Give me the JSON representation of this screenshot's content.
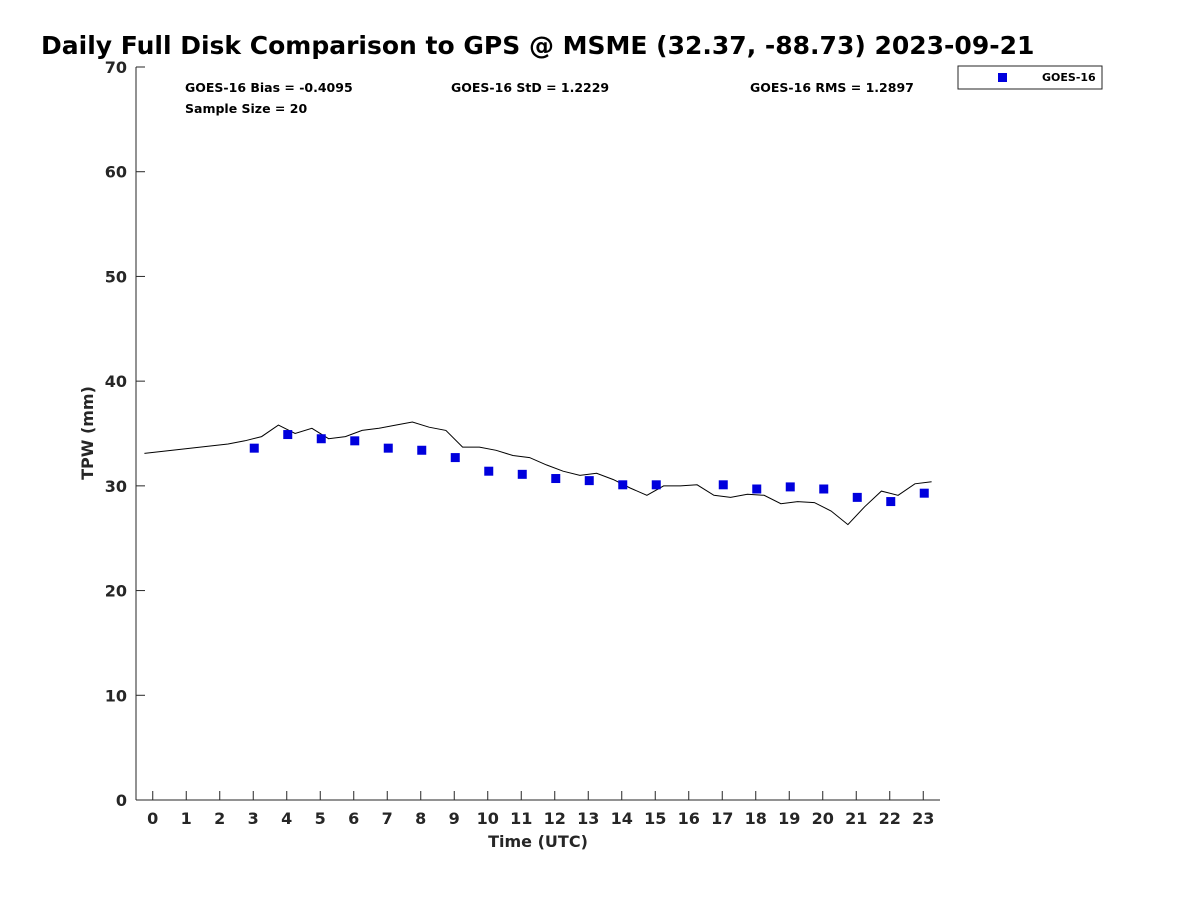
{
  "chart_data": {
    "type": "scatter",
    "title": "Daily Full Disk Comparison to GPS @ MSME (32.37, -88.73) 2023-09-21",
    "xlabel": "Time (UTC)",
    "ylabel": "TPW (mm)",
    "xlim": [
      -0.5,
      23.5
    ],
    "ylim": [
      0,
      70
    ],
    "xticks": [
      0,
      1,
      2,
      3,
      4,
      5,
      6,
      7,
      8,
      9,
      10,
      11,
      12,
      13,
      14,
      15,
      16,
      17,
      18,
      19,
      20,
      21,
      22,
      23
    ],
    "yticks": [
      0,
      10,
      20,
      30,
      40,
      50,
      60,
      70
    ],
    "grid": false,
    "legend_position": "top-right, outside plot",
    "stats": {
      "bias": "GOES-16 Bias = -0.4095",
      "std": "GOES-16 StD = 1.2229",
      "rms": "GOES-16 RMS = 1.2897",
      "sample": "Sample Size = 20"
    },
    "series": [
      {
        "name": "GOES-16",
        "kind": "marker",
        "color": "#0000dd",
        "x": [
          3.03,
          4.03,
          5.03,
          6.03,
          7.03,
          8.03,
          9.03,
          10.03,
          11.03,
          12.03,
          13.03,
          14.03,
          15.03,
          17.03,
          18.03,
          19.03,
          20.03,
          21.03,
          22.03,
          23.03
        ],
        "y": [
          33.6,
          34.9,
          34.5,
          34.3,
          33.6,
          33.4,
          32.7,
          31.4,
          31.1,
          30.7,
          30.5,
          30.1,
          30.1,
          30.1,
          29.7,
          29.9,
          29.7,
          28.9,
          28.5,
          29.3
        ]
      },
      {
        "name": "GPS",
        "kind": "line",
        "color": "#000000",
        "x": [
          -0.25,
          2.25,
          2.75,
          3.25,
          3.75,
          4.25,
          4.75,
          5.25,
          5.75,
          6.25,
          6.75,
          7.25,
          7.75,
          8.25,
          8.75,
          9.25,
          9.75,
          10.25,
          10.75,
          11.25,
          11.75,
          12.25,
          12.75,
          13.25,
          13.75,
          14.25,
          14.75,
          15.25,
          15.75,
          16.25,
          16.75,
          17.25,
          17.75,
          18.25,
          18.75,
          19.25,
          19.75,
          20.25,
          20.75,
          21.25,
          21.75,
          22.25,
          22.75,
          23.25
        ],
        "y": [
          33.1,
          34.0,
          34.3,
          34.7,
          35.8,
          35.0,
          35.5,
          34.5,
          34.7,
          35.3,
          35.5,
          35.8,
          36.1,
          35.6,
          35.3,
          33.7,
          33.7,
          33.4,
          32.9,
          32.7,
          32.0,
          31.4,
          31.0,
          31.2,
          30.6,
          29.8,
          29.1,
          30.0,
          30.0,
          30.1,
          29.1,
          28.9,
          29.2,
          29.1,
          28.3,
          28.5,
          28.4,
          27.6,
          26.3,
          28.0,
          29.5,
          29.1,
          30.2,
          30.4
        ]
      }
    ]
  }
}
